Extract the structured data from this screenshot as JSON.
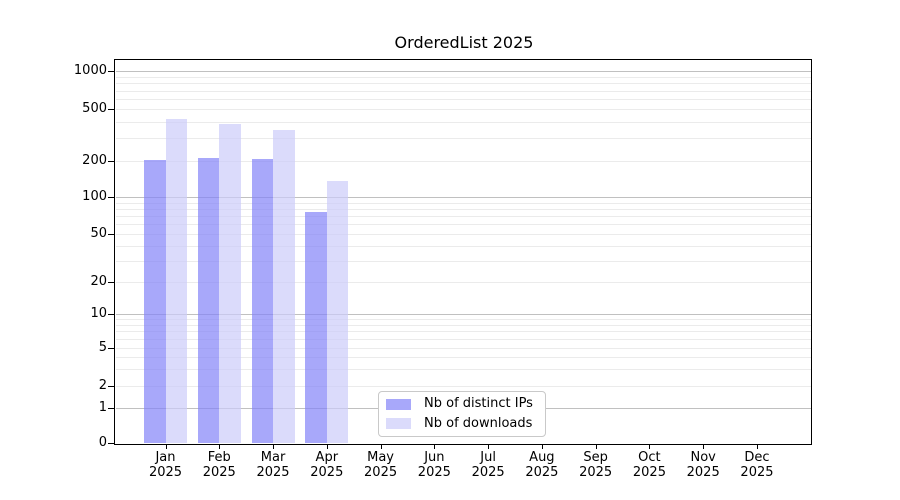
{
  "chart_data": {
    "type": "bar",
    "title": "OrderedList 2025",
    "x_months": [
      "Jan",
      "Feb",
      "Mar",
      "Apr",
      "May",
      "Jun",
      "Jul",
      "Aug",
      "Sep",
      "Oct",
      "Nov",
      "Dec"
    ],
    "x_year": "2025",
    "series": [
      {
        "name": "Nb of distinct IPs",
        "color": "#8383f8",
        "alpha": 0.7,
        "values": [
          205,
          210,
          208,
          75,
          0,
          0,
          0,
          0,
          0,
          0,
          0,
          0
        ]
      },
      {
        "name": "Nb of downloads",
        "color": "#ccccfa",
        "alpha": 0.7,
        "values": [
          420,
          385,
          345,
          135,
          0,
          0,
          0,
          0,
          0,
          0,
          0,
          0
        ]
      }
    ],
    "yscale": "symlog",
    "ylim": [
      0,
      1000
    ],
    "yticks": [
      0,
      1,
      2,
      5,
      10,
      20,
      50,
      100,
      200,
      500,
      1000
    ],
    "grid": {
      "axis": "y",
      "which": "both",
      "major_color": "#c0c0c0",
      "minor_color": "#ebebeb"
    },
    "legend": {
      "position": "lower center"
    }
  }
}
